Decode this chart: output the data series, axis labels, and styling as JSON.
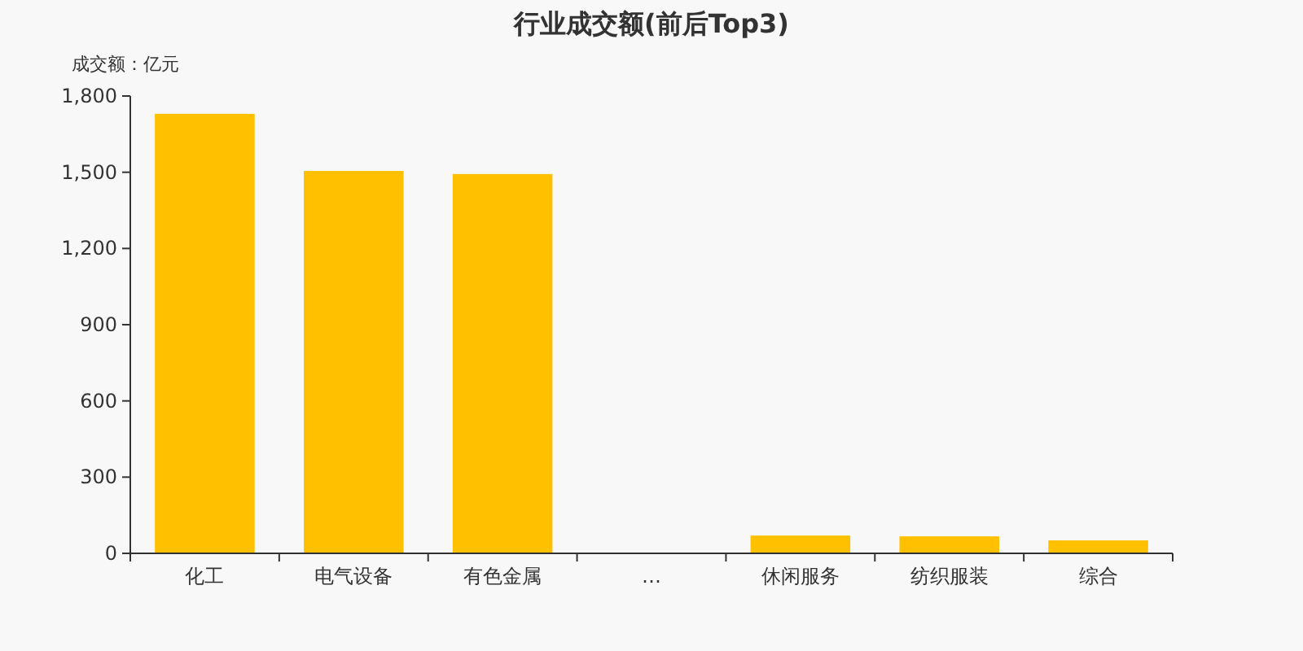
{
  "chart_data": {
    "type": "bar",
    "title": "行业成交额(前后Top3)",
    "ylabel": "成交额：亿元",
    "categories": [
      "化工",
      "电气设备",
      "有色金属",
      "…",
      "休闲服务",
      "纺织服装",
      "综合"
    ],
    "values": [
      1730,
      1505,
      1493,
      null,
      70,
      67,
      51
    ],
    "color": "#ffc000",
    "ylim": [
      0,
      1800
    ],
    "yticks": [
      0,
      {
        "value": 300,
        "label": "300"
      },
      {
        "value": 600,
        "label": "600"
      },
      {
        "value": 900,
        "label": "900"
      },
      {
        "value": 1200,
        "label": "1,200"
      },
      {
        "value": 1500,
        "label": "1,500"
      },
      {
        "value": 1800,
        "label": "1,800"
      }
    ],
    "grid": false
  }
}
